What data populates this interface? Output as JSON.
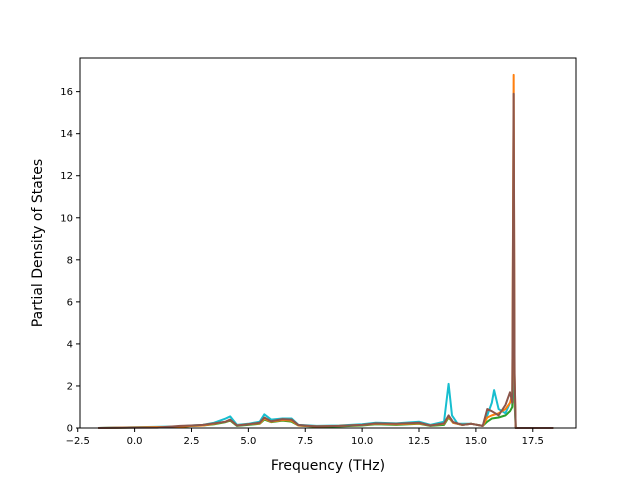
{
  "chart_data": {
    "type": "line",
    "title": "",
    "xlabel": "Frequency (THz)",
    "ylabel": "Partial Density of States",
    "xlim": [
      -2.4,
      19.4
    ],
    "ylim": [
      0,
      17.6
    ],
    "xticks": [
      -2.5,
      0.0,
      2.5,
      5.0,
      7.5,
      10.0,
      12.5,
      15.0,
      17.5
    ],
    "xtick_labels": [
      "−2.5",
      "0.0",
      "2.5",
      "5.0",
      "7.5",
      "10.0",
      "12.5",
      "15.0",
      "17.5"
    ],
    "yticks": [
      0,
      2,
      4,
      6,
      8,
      10,
      12,
      14,
      16
    ],
    "ytick_labels": [
      "0",
      "2",
      "4",
      "6",
      "8",
      "10",
      "12",
      "14",
      "16"
    ],
    "grid": false,
    "legend": "none",
    "series": [
      {
        "color": "#2ca02c",
        "x": [
          -1.6,
          2.0,
          2.5,
          3.0,
          3.5,
          4.0,
          4.2,
          4.5,
          5.0,
          5.5,
          5.7,
          6.0,
          6.5,
          6.9,
          7.2,
          8.0,
          9.0,
          10.0,
          10.6,
          11.5,
          12.5,
          13.0,
          13.6,
          13.8,
          14.0,
          14.4,
          14.8,
          15.3,
          15.5,
          15.7,
          16.0,
          16.3,
          16.5,
          16.6,
          16.66,
          16.7,
          16.75,
          18.4
        ],
        "values": [
          0,
          0.05,
          0.1,
          0.12,
          0.18,
          0.28,
          0.35,
          0.1,
          0.15,
          0.2,
          0.4,
          0.28,
          0.35,
          0.3,
          0.12,
          0.06,
          0.08,
          0.12,
          0.18,
          0.15,
          0.2,
          0.1,
          0.15,
          0.5,
          0.25,
          0.15,
          0.2,
          0.1,
          0.3,
          0.45,
          0.5,
          0.6,
          0.8,
          1.0,
          7.5,
          1.2,
          0,
          0
        ]
      },
      {
        "color": "#17becf",
        "x": [
          -1.6,
          2.0,
          2.5,
          3.0,
          3.5,
          4.0,
          4.2,
          4.5,
          5.0,
          5.5,
          5.7,
          6.0,
          6.5,
          6.9,
          7.2,
          8.0,
          9.0,
          10.0,
          10.6,
          11.5,
          12.5,
          13.0,
          13.6,
          13.8,
          13.95,
          14.2,
          14.8,
          15.3,
          15.5,
          15.7,
          15.8,
          16.0,
          16.3,
          16.5,
          16.6,
          16.66,
          16.7,
          16.75,
          18.4
        ],
        "values": [
          0,
          0.08,
          0.12,
          0.15,
          0.25,
          0.45,
          0.55,
          0.15,
          0.2,
          0.3,
          0.65,
          0.4,
          0.45,
          0.45,
          0.15,
          0.1,
          0.12,
          0.18,
          0.25,
          0.22,
          0.3,
          0.15,
          0.3,
          2.1,
          0.6,
          0.2,
          0.2,
          0.1,
          0.6,
          1.2,
          1.8,
          0.9,
          0.7,
          1.2,
          1.4,
          9.0,
          2.0,
          0,
          0
        ]
      },
      {
        "color": "#ff7f0e",
        "x": [
          -1.6,
          2.0,
          2.5,
          3.0,
          3.5,
          4.0,
          4.2,
          4.5,
          5.0,
          5.5,
          5.7,
          6.0,
          6.5,
          6.9,
          7.2,
          8.0,
          9.0,
          10.0,
          10.6,
          11.5,
          12.5,
          13.0,
          13.6,
          13.8,
          14.0,
          14.4,
          14.8,
          15.3,
          15.5,
          15.7,
          16.0,
          16.3,
          16.5,
          16.6,
          16.66,
          16.7,
          16.75,
          18.4
        ],
        "values": [
          0,
          0.06,
          0.1,
          0.12,
          0.2,
          0.3,
          0.38,
          0.12,
          0.18,
          0.22,
          0.45,
          0.3,
          0.38,
          0.35,
          0.12,
          0.08,
          0.1,
          0.14,
          0.2,
          0.18,
          0.22,
          0.12,
          0.2,
          0.55,
          0.25,
          0.15,
          0.2,
          0.1,
          0.5,
          0.6,
          0.7,
          0.9,
          1.2,
          1.6,
          16.8,
          2.5,
          0,
          0
        ]
      },
      {
        "color": "#8c564b",
        "x": [
          -1.6,
          1.0,
          2.0,
          2.5,
          3.0,
          3.5,
          4.0,
          4.2,
          4.5,
          5.0,
          5.5,
          5.7,
          6.0,
          6.5,
          6.9,
          7.2,
          8.0,
          9.0,
          10.0,
          10.6,
          11.5,
          12.5,
          13.0,
          13.6,
          13.8,
          14.0,
          14.4,
          14.8,
          15.3,
          15.5,
          15.7,
          16.0,
          16.3,
          16.5,
          16.6,
          16.66,
          16.7,
          16.75,
          18.4
        ],
        "values": [
          0,
          0.02,
          0.1,
          0.12,
          0.15,
          0.22,
          0.3,
          0.4,
          0.12,
          0.18,
          0.25,
          0.5,
          0.32,
          0.42,
          0.4,
          0.14,
          0.08,
          0.1,
          0.15,
          0.22,
          0.2,
          0.25,
          0.12,
          0.22,
          0.6,
          0.28,
          0.15,
          0.2,
          0.1,
          0.9,
          0.8,
          0.6,
          1.1,
          1.7,
          1.2,
          15.9,
          2.6,
          0,
          0
        ]
      }
    ]
  }
}
